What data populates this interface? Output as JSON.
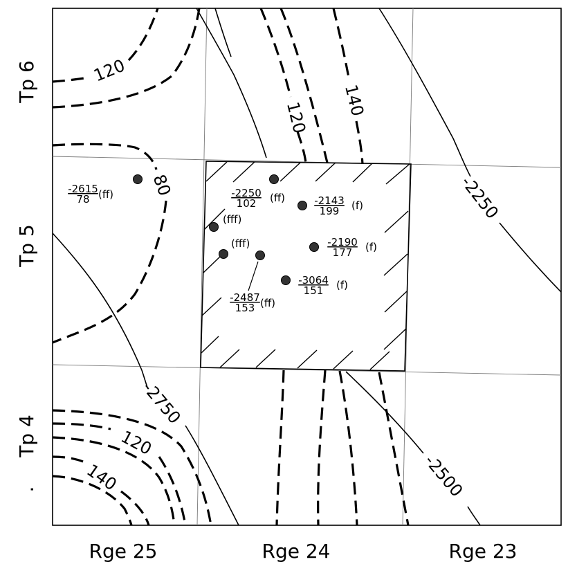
{
  "axes": {
    "ranges": [
      "Rge 25",
      "Rge 24",
      "Rge 23"
    ],
    "townships": [
      "Tp 6",
      "Tp 5",
      "Tp 4"
    ],
    "tp4_prefix": "."
  },
  "contours": {
    "dashed_labels": [
      "120",
      "120",
      "140",
      "80",
      "120",
      "140"
    ],
    "solid_labels": [
      "2250",
      "2750",
      "2500"
    ],
    "solid_label_prefix": "-"
  },
  "wells": [
    {
      "id": "w1",
      "upper": "-2615",
      "lower": "78",
      "code": "(ff)"
    },
    {
      "id": "w2",
      "upper": "-2250",
      "lower": "102",
      "code": "(ff)"
    },
    {
      "id": "w3",
      "upper": "-2143",
      "lower": "199",
      "code": "(f)"
    },
    {
      "id": "w4",
      "upper": "",
      "lower": "",
      "code": "(fff)"
    },
    {
      "id": "w5",
      "upper": "",
      "lower": "",
      "code": "(fff)"
    },
    {
      "id": "w6",
      "upper": "-2190",
      "lower": "177",
      "code": "(f)"
    },
    {
      "id": "w7",
      "upper": "-2487",
      "lower": "153",
      "code": "(ff)"
    },
    {
      "id": "w8",
      "upper": "-3064",
      "lower": "151",
      "code": "(f)"
    }
  ]
}
